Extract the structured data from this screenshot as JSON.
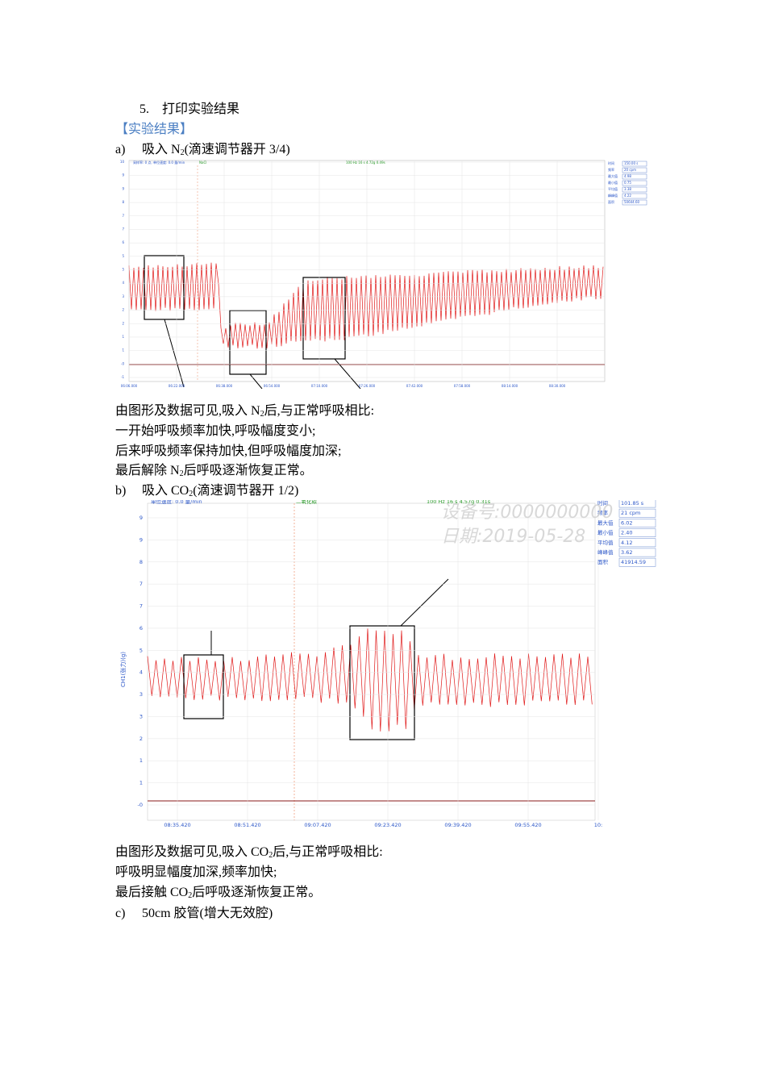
{
  "section": {
    "number": "5.",
    "title": "打印实验结果"
  },
  "heading": "【实验结果】",
  "item_a": {
    "label": "a)",
    "text": [
      "吸入 N",
      "2",
      "(滴速调节器开 3/4)"
    ]
  },
  "figure_a": {
    "header": [
      "采样率: 0 点, 单位速度: 0.0 量/min",
      "NaCl",
      "100 Hz 16 s   4.72g 0.49s"
    ],
    "yticks": [
      "10",
      "9",
      "9",
      "8",
      "7",
      "7",
      "6",
      "5",
      "5",
      "4",
      "3",
      "2",
      "2",
      "1",
      "1",
      "-0",
      "-1"
    ],
    "xticks": [
      "06:06.000",
      "06:22.000",
      "06:38.000",
      "06:54.000",
      "07:10.000",
      "07:26.000",
      "07:42.000",
      "07:58.000",
      "08:14.000",
      "08:30.000"
    ],
    "stats": [
      [
        "时间",
        "150.00 s"
      ],
      [
        "频率",
        "20 cpm"
      ],
      [
        "最大值",
        "4.98"
      ],
      [
        "最小值",
        "0.75"
      ],
      [
        "平均值",
        "3.38"
      ],
      [
        "峰峰值",
        "4.22"
      ],
      [
        "面积",
        "50644.60"
      ]
    ]
  },
  "notes_a": [
    [
      "由图形及数据可见,吸入 N",
      "2",
      "后,与正常呼吸相比:"
    ],
    [
      "一开始呼吸频率加快,呼吸幅度变小;"
    ],
    [
      "后来呼吸频率保持加快,但呼吸幅度加深;"
    ],
    [
      "最后解除 N",
      "2",
      "后呼吸逐渐恢复正常。"
    ]
  ],
  "item_b": {
    "label": "b)",
    "text": [
      "吸入 CO",
      "2",
      "(滴速调节器开 1/2)"
    ]
  },
  "figure_b": {
    "header": [
      "单位速度: 0.0 量/min",
      "二氧化碳",
      "100 Hz 16 s   4.57g 0.31s"
    ],
    "ylabel": "CH1(张力)(g)",
    "watermark": [
      "设备号:0000000000",
      "日期:2019-05-28"
    ],
    "yticks": [
      "9",
      "9",
      "8",
      "7",
      "7",
      "6",
      "5",
      "4",
      "3",
      "3",
      "2",
      "1",
      "1",
      "-0"
    ],
    "xticks": [
      "08:35.420",
      "08:51.420",
      "09:07.420",
      "09:23.420",
      "09:39.420",
      "09:55.420",
      "10:"
    ],
    "stats": [
      [
        "时间",
        "101.85 s"
      ],
      [
        "频率",
        "21 cpm"
      ],
      [
        "最大值",
        "6.02"
      ],
      [
        "最小值",
        "2.40"
      ],
      [
        "平均值",
        "4.12"
      ],
      [
        "峰峰值",
        "3.62"
      ],
      [
        "面积",
        "41914.59"
      ]
    ]
  },
  "notes_b": [
    [
      "由图形及数据可见,吸入 CO",
      "2",
      "后,与正常呼吸相比:"
    ],
    [
      "呼吸明显幅度加深,频率加快;"
    ],
    [
      "最后接触 CO",
      "2",
      "后呼吸逐渐恢复正常。"
    ]
  ],
  "item_c": {
    "label": "c)",
    "text": [
      "50cm 胶管(增大无效腔)"
    ]
  }
}
